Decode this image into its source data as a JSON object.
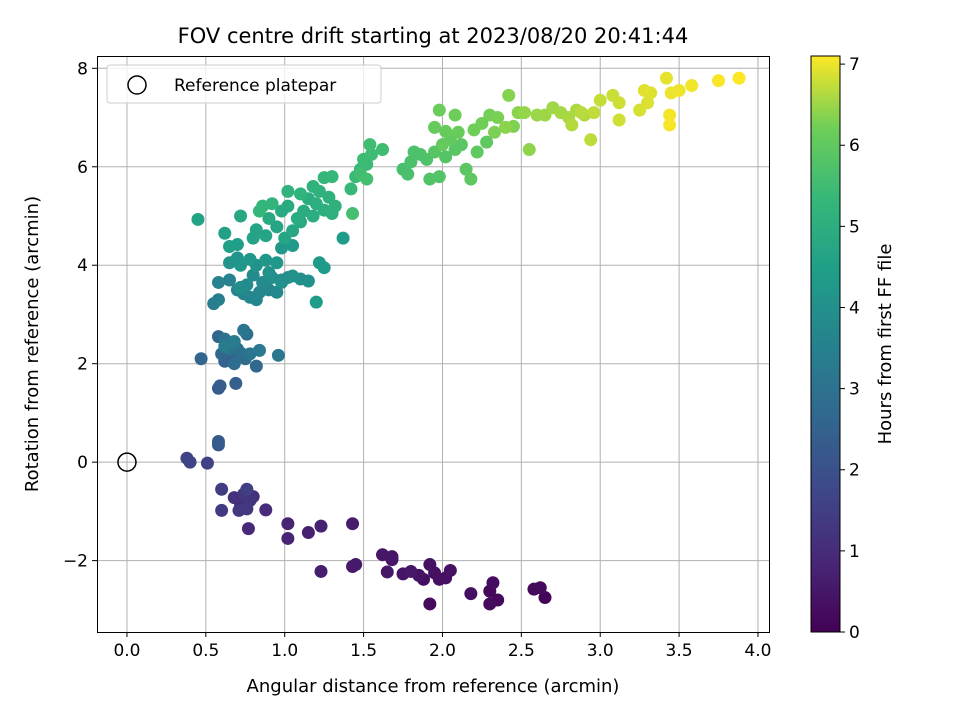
{
  "chart_data": {
    "type": "scatter",
    "title": "FOV centre drift starting at 2023/08/20 20:41:44",
    "xlabel": "Angular distance from reference (arcmin)",
    "ylabel": "Rotation from reference (arcmin)",
    "xlim": [
      -0.19,
      4.07
    ],
    "ylim": [
      -3.45,
      8.25
    ],
    "xticks": [
      "0.0",
      "0.5",
      "1.0",
      "1.5",
      "2.0",
      "2.5",
      "3.0",
      "3.5",
      "4.0"
    ],
    "yticks": [
      "−2",
      "0",
      "2",
      "4",
      "6",
      "8"
    ],
    "grid": true,
    "legend": {
      "placement": "upper-left",
      "entries": [
        "Reference platepar"
      ]
    },
    "colorbar": {
      "label": "Hours from first FF file",
      "colormap": "viridis",
      "range": [
        0,
        7.1
      ],
      "ticks": [
        "0",
        "1",
        "2",
        "3",
        "4",
        "5",
        "6",
        "7"
      ]
    },
    "reference_point": {
      "x": 0.0,
      "y": 0.0
    },
    "points": [
      [
        2.65,
        -2.75,
        0.1
      ],
      [
        2.35,
        -2.8,
        0.15
      ],
      [
        2.3,
        -2.62,
        0.15
      ],
      [
        2.58,
        -2.58,
        0.18
      ],
      [
        2.62,
        -2.55,
        0.2
      ],
      [
        2.3,
        -2.88,
        0.22
      ],
      [
        1.92,
        -2.88,
        0.25
      ],
      [
        2.32,
        -2.45,
        0.28
      ],
      [
        2.18,
        -2.67,
        0.3
      ],
      [
        1.88,
        -2.38,
        0.32
      ],
      [
        1.95,
        -2.25,
        0.34
      ],
      [
        2.02,
        -2.35,
        0.35
      ],
      [
        1.98,
        -2.38,
        0.36
      ],
      [
        2.05,
        -2.2,
        0.38
      ],
      [
        1.92,
        -2.08,
        0.4
      ],
      [
        1.85,
        -2.3,
        0.42
      ],
      [
        1.75,
        -2.27,
        0.44
      ],
      [
        1.68,
        -1.92,
        0.45
      ],
      [
        1.62,
        -1.88,
        0.47
      ],
      [
        1.65,
        -2.23,
        0.48
      ],
      [
        1.68,
        -1.98,
        0.5
      ],
      [
        1.8,
        -2.22,
        0.52
      ],
      [
        1.45,
        -2.08,
        0.55
      ],
      [
        1.43,
        -2.12,
        0.58
      ],
      [
        1.43,
        -1.25,
        0.62
      ],
      [
        1.23,
        -2.22,
        0.65
      ],
      [
        1.15,
        -1.43,
        0.7
      ],
      [
        1.23,
        -1.3,
        0.75
      ],
      [
        1.02,
        -1.25,
        0.8
      ],
      [
        1.02,
        -1.55,
        0.85
      ],
      [
        0.77,
        -1.35,
        0.9
      ],
      [
        0.88,
        -0.97,
        0.95
      ],
      [
        0.75,
        -0.82,
        1.0
      ],
      [
        0.8,
        -0.7,
        1.05
      ],
      [
        0.72,
        -0.87,
        1.1
      ],
      [
        0.68,
        -0.72,
        1.15
      ],
      [
        0.78,
        -0.78,
        1.2
      ],
      [
        0.74,
        -0.65,
        1.25
      ],
      [
        0.76,
        -0.95,
        1.3
      ],
      [
        0.71,
        -0.98,
        1.35
      ],
      [
        0.6,
        -0.98,
        1.4
      ],
      [
        0.6,
        -0.55,
        1.45
      ],
      [
        0.76,
        -0.55,
        1.5
      ],
      [
        0.51,
        -0.02,
        1.55
      ],
      [
        0.38,
        0.08,
        1.6
      ],
      [
        0.4,
        0.0,
        1.65
      ],
      [
        0.58,
        0.35,
        2.2
      ],
      [
        0.58,
        0.42,
        2.25
      ],
      [
        0.58,
        1.5,
        2.3
      ],
      [
        0.59,
        1.55,
        2.35
      ],
      [
        0.69,
        1.6,
        2.4
      ],
      [
        0.62,
        2.05,
        2.45
      ],
      [
        0.66,
        2.15,
        2.5
      ],
      [
        0.58,
        2.55,
        2.55
      ],
      [
        0.47,
        2.1,
        2.6
      ],
      [
        0.6,
        2.2,
        2.65
      ],
      [
        0.82,
        1.95,
        2.7
      ],
      [
        0.7,
        2.3,
        2.75
      ],
      [
        0.75,
        2.1,
        2.8
      ],
      [
        0.68,
        2.0,
        2.85
      ],
      [
        0.76,
        2.6,
        2.9
      ],
      [
        0.72,
        2.22,
        2.95
      ],
      [
        0.62,
        2.5,
        3.0
      ],
      [
        0.65,
        2.3,
        3.05
      ],
      [
        0.78,
        2.2,
        3.1
      ],
      [
        0.74,
        2.68,
        3.15
      ],
      [
        0.96,
        2.17,
        3.2
      ],
      [
        0.84,
        2.27,
        3.25
      ],
      [
        0.62,
        2.35,
        3.3
      ],
      [
        0.68,
        2.45,
        3.35
      ],
      [
        0.55,
        3.22,
        3.4
      ],
      [
        0.58,
        3.3,
        3.45
      ],
      [
        0.58,
        3.65,
        3.5
      ],
      [
        0.65,
        3.7,
        3.55
      ],
      [
        0.74,
        3.42,
        3.6
      ],
      [
        0.7,
        3.5,
        3.62
      ],
      [
        0.82,
        3.3,
        3.65
      ],
      [
        0.78,
        3.35,
        3.68
      ],
      [
        0.84,
        3.45,
        3.7
      ],
      [
        0.88,
        3.6,
        3.72
      ],
      [
        0.9,
        3.5,
        3.75
      ],
      [
        0.95,
        3.45,
        3.78
      ],
      [
        0.86,
        3.65,
        3.8
      ],
      [
        0.98,
        3.7,
        3.82
      ],
      [
        0.8,
        3.8,
        3.85
      ],
      [
        0.76,
        3.6,
        3.88
      ],
      [
        0.72,
        3.55,
        3.9
      ],
      [
        0.92,
        3.75,
        3.92
      ],
      [
        1.02,
        3.75,
        3.95
      ],
      [
        0.98,
        3.65,
        3.98
      ],
      [
        1.1,
        3.72,
        4.0
      ],
      [
        1.15,
        3.68,
        4.02
      ],
      [
        1.05,
        3.78,
        4.05
      ],
      [
        0.9,
        3.85,
        4.08
      ],
      [
        0.82,
        4.0,
        4.1
      ],
      [
        0.7,
        4.15,
        4.12
      ],
      [
        0.65,
        4.05,
        4.15
      ],
      [
        0.72,
        4.0,
        4.18
      ],
      [
        0.78,
        4.12,
        4.2
      ],
      [
        0.88,
        4.1,
        4.22
      ],
      [
        0.95,
        4.05,
        4.25
      ],
      [
        0.98,
        4.35,
        4.28
      ],
      [
        1.05,
        4.4,
        4.3
      ],
      [
        1.22,
        4.05,
        4.32
      ],
      [
        1.25,
        3.95,
        4.35
      ],
      [
        1.2,
        3.25,
        4.38
      ],
      [
        1.37,
        4.55,
        4.4
      ],
      [
        0.7,
        4.42,
        4.45
      ],
      [
        0.65,
        4.38,
        4.5
      ],
      [
        0.62,
        4.65,
        4.55
      ],
      [
        0.45,
        4.93,
        4.6
      ],
      [
        0.8,
        4.55,
        4.62
      ],
      [
        0.82,
        4.72,
        4.65
      ],
      [
        0.88,
        4.6,
        4.68
      ],
      [
        0.95,
        4.78,
        4.7
      ],
      [
        1.0,
        4.55,
        4.72
      ],
      [
        1.05,
        4.7,
        4.75
      ],
      [
        1.1,
        4.88,
        4.78
      ],
      [
        0.72,
        5.0,
        4.8
      ],
      [
        0.9,
        4.95,
        4.82
      ],
      [
        0.98,
        5.1,
        4.85
      ],
      [
        1.02,
        5.2,
        4.88
      ],
      [
        1.08,
        4.95,
        4.9
      ],
      [
        1.12,
        5.1,
        4.92
      ],
      [
        1.18,
        5.0,
        4.95
      ],
      [
        1.15,
        5.35,
        4.98
      ],
      [
        1.2,
        5.25,
        5.0
      ],
      [
        1.25,
        5.12,
        5.02
      ],
      [
        1.3,
        5.05,
        5.05
      ],
      [
        1.32,
        5.2,
        5.08
      ],
      [
        1.28,
        5.38,
        5.1
      ],
      [
        1.22,
        5.5,
        5.12
      ],
      [
        1.18,
        5.6,
        5.15
      ],
      [
        1.1,
        5.45,
        5.18
      ],
      [
        1.02,
        5.5,
        5.2
      ],
      [
        0.92,
        5.25,
        5.22
      ],
      [
        0.86,
        5.2,
        5.25
      ],
      [
        0.84,
        5.1,
        5.28
      ],
      [
        1.25,
        5.78,
        5.3
      ],
      [
        1.3,
        5.8,
        5.32
      ],
      [
        1.42,
        5.55,
        5.35
      ],
      [
        1.45,
        5.8,
        5.38
      ],
      [
        1.48,
        5.95,
        5.4
      ],
      [
        1.52,
        6.05,
        5.42
      ],
      [
        1.5,
        6.15,
        5.45
      ],
      [
        1.55,
        6.25,
        5.48
      ],
      [
        1.62,
        6.35,
        5.5
      ],
      [
        1.54,
        6.45,
        5.52
      ],
      [
        1.48,
        5.85,
        5.55
      ],
      [
        1.52,
        5.75,
        5.58
      ],
      [
        1.43,
        5.05,
        5.6
      ],
      [
        1.75,
        5.95,
        5.62
      ],
      [
        1.78,
        5.85,
        5.65
      ],
      [
        1.8,
        6.1,
        5.68
      ],
      [
        1.82,
        6.3,
        5.7
      ],
      [
        1.86,
        6.25,
        5.72
      ],
      [
        1.9,
        6.15,
        5.75
      ],
      [
        1.92,
        5.75,
        5.78
      ],
      [
        1.98,
        5.8,
        5.8
      ],
      [
        2.02,
        6.2,
        5.82
      ],
      [
        1.95,
        6.3,
        5.85
      ],
      [
        2.08,
        6.35,
        5.88
      ],
      [
        2.12,
        6.45,
        5.9
      ],
      [
        2.15,
        5.95,
        5.92
      ],
      [
        2.18,
        5.75,
        5.95
      ],
      [
        2.22,
        6.3,
        5.98
      ],
      [
        2.28,
        6.5,
        6.0
      ],
      [
        2.05,
        6.55,
        6.02
      ],
      [
        2.0,
        6.45,
        6.05
      ],
      [
        1.95,
        6.8,
        6.08
      ],
      [
        2.02,
        6.72,
        6.1
      ],
      [
        2.1,
        6.7,
        6.12
      ],
      [
        1.98,
        7.15,
        6.15
      ],
      [
        2.08,
        7.05,
        6.18
      ],
      [
        2.2,
        6.75,
        6.2
      ],
      [
        2.25,
        6.88,
        6.22
      ],
      [
        2.3,
        7.05,
        6.25
      ],
      [
        2.35,
        7.0,
        6.28
      ],
      [
        2.33,
        6.7,
        6.3
      ],
      [
        2.45,
        6.82,
        6.32
      ],
      [
        2.42,
        7.45,
        6.35
      ],
      [
        2.48,
        7.1,
        6.38
      ],
      [
        2.4,
        6.8,
        6.4
      ],
      [
        2.55,
        6.35,
        6.42
      ],
      [
        2.52,
        7.1,
        6.45
      ],
      [
        2.6,
        7.05,
        6.48
      ],
      [
        2.65,
        7.05,
        6.5
      ],
      [
        2.7,
        7.2,
        6.52
      ],
      [
        2.75,
        7.1,
        6.55
      ],
      [
        2.8,
        7.0,
        6.58
      ],
      [
        2.85,
        7.15,
        6.6
      ],
      [
        2.9,
        7.05,
        6.62
      ],
      [
        2.82,
        6.85,
        6.65
      ],
      [
        2.88,
        7.1,
        6.68
      ],
      [
        2.94,
        6.55,
        6.7
      ],
      [
        2.96,
        7.1,
        6.72
      ],
      [
        3.0,
        7.35,
        6.75
      ],
      [
        3.08,
        7.45,
        6.78
      ],
      [
        3.12,
        7.3,
        6.8
      ],
      [
        3.12,
        6.95,
        6.82
      ],
      [
        3.25,
        7.15,
        6.85
      ],
      [
        3.3,
        7.3,
        6.88
      ],
      [
        3.32,
        7.5,
        6.9
      ],
      [
        3.28,
        7.55,
        6.92
      ],
      [
        3.42,
        7.8,
        6.95
      ],
      [
        3.45,
        7.5,
        6.98
      ],
      [
        3.5,
        7.55,
        7.0
      ],
      [
        3.58,
        7.65,
        7.02
      ],
      [
        3.44,
        7.05,
        7.04
      ],
      [
        3.44,
        6.85,
        7.05
      ],
      [
        3.75,
        7.75,
        7.07
      ],
      [
        3.88,
        7.8,
        7.1
      ]
    ]
  }
}
